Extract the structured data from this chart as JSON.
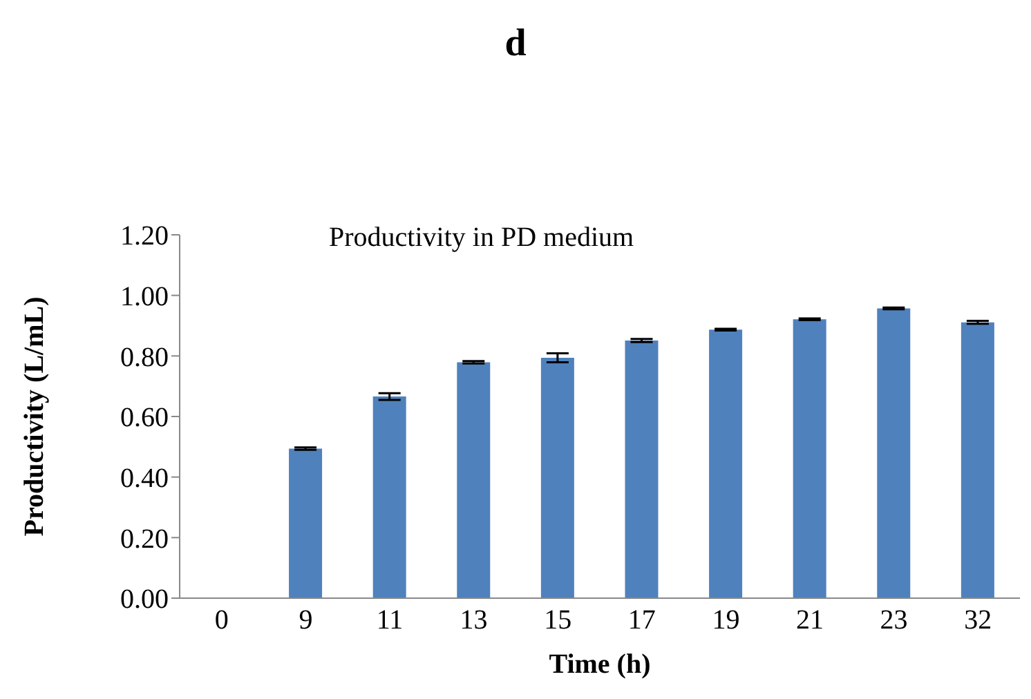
{
  "chart_data": {
    "type": "bar",
    "title": "d",
    "subtitle": "Productivity in PD medium",
    "xlabel": "Time (h)",
    "ylabel": "Productivity (L/mL)",
    "categories": [
      "0",
      "9",
      "11",
      "13",
      "15",
      "17",
      "19",
      "21",
      "23",
      "32"
    ],
    "values": [
      0,
      0.494,
      0.666,
      0.779,
      0.794,
      0.851,
      0.887,
      0.921,
      0.957,
      0.911
    ],
    "errors": [
      null,
      0.004,
      0.011,
      0.004,
      0.015,
      0.005,
      0.003,
      0.003,
      0.003,
      0.005
    ],
    "color": "#4f81bd",
    "ylim": [
      0,
      1.2
    ],
    "yticks": [
      {
        "value": 0,
        "label": "0.00"
      },
      {
        "value": 0.2,
        "label": "0.20"
      },
      {
        "value": 0.4,
        "label": "0.40"
      },
      {
        "value": 0.6,
        "label": "0.60"
      },
      {
        "value": 0.8,
        "label": "0.80"
      },
      {
        "value": 1.0,
        "label": "1.00"
      },
      {
        "value": 1.2,
        "label": "1.20"
      }
    ],
    "grid": false,
    "legend": false
  }
}
